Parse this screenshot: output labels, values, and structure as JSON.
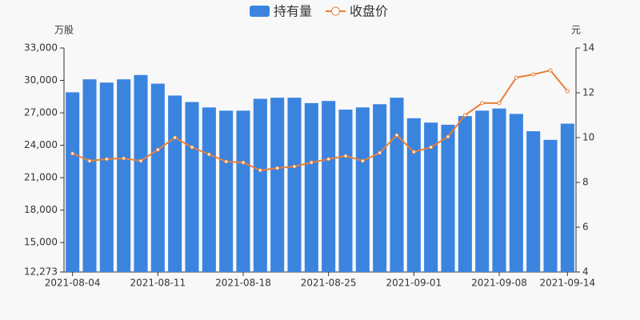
{
  "chart_data": {
    "type": "bar-line",
    "y_label": "万股",
    "y2_label": "元",
    "categories": [
      "2021-08-04",
      null,
      null,
      null,
      null,
      "2021-08-11",
      null,
      null,
      null,
      null,
      "2021-08-18",
      null,
      null,
      null,
      null,
      "2021-08-25",
      null,
      null,
      null,
      null,
      "2021-09-01",
      null,
      null,
      null,
      null,
      "2021-09-08",
      null,
      null,
      null,
      "2021-09-14"
    ],
    "series": [
      {
        "name": "持有量",
        "type": "bar",
        "color": "#3a84e0",
        "values": [
          28900,
          30100,
          29800,
          30100,
          30500,
          29700,
          28600,
          28000,
          27500,
          27200,
          27200,
          28300,
          28400,
          28400,
          27900,
          28100,
          27300,
          27500,
          27800,
          28400,
          26500,
          26100,
          25900,
          26700,
          27200,
          27400,
          26900,
          25300,
          24500,
          26000
        ]
      },
      {
        "name": "收盘价",
        "type": "line",
        "axis": "y2",
        "color": "#e8803a",
        "values": [
          9.29,
          8.96,
          9.04,
          9.07,
          8.96,
          9.46,
          10.0,
          9.57,
          9.25,
          8.93,
          8.89,
          8.54,
          8.64,
          8.71,
          8.89,
          9.04,
          9.18,
          8.96,
          9.32,
          10.11,
          9.36,
          9.57,
          10.04,
          11.0,
          11.54,
          11.54,
          12.68,
          12.82,
          13.0,
          12.07
        ]
      }
    ],
    "ylim": [
      12273,
      33000
    ],
    "yticks": [
      {
        "value": 12273,
        "label": "12,273"
      },
      {
        "value": 15000,
        "label": "15,000"
      },
      {
        "value": 18000,
        "label": "18,000"
      },
      {
        "value": 21000,
        "label": "21,000"
      },
      {
        "value": 24000,
        "label": "24,000"
      },
      {
        "value": 27000,
        "label": "27,000"
      },
      {
        "value": 30000,
        "label": "30,000"
      },
      {
        "value": 33000,
        "label": "33,000"
      }
    ],
    "y2lim": [
      4,
      14
    ],
    "y2ticks": [
      4,
      6,
      8,
      10,
      12,
      14
    ]
  }
}
